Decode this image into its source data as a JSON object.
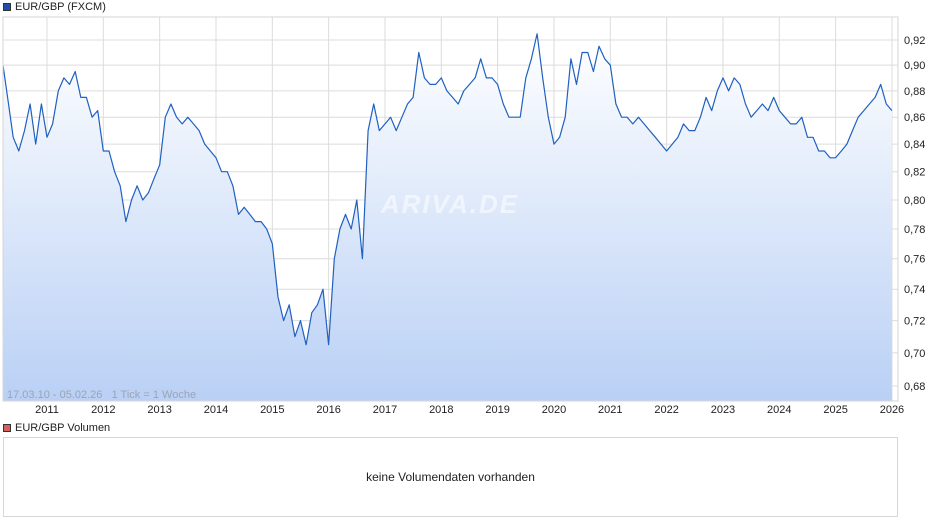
{
  "price_panel": {
    "legend_label": "EUR/GBP (FXCM)",
    "legend_color": "#1f4fa8",
    "info_text": "17.03.10 - 05.02.26   1 Tick = 1 Woche",
    "watermark": "ARIVA.DE",
    "line_color": "#2060c0",
    "fill_top_color": "#ffffff",
    "fill_bottom_color": "#b9d0f5"
  },
  "volume_panel": {
    "legend_label": "EUR/GBP Volumen",
    "legend_color": "#d66060",
    "empty_message": "keine Volumendaten vorhanden"
  },
  "chart_data": {
    "type": "area",
    "title": "EUR/GBP (FXCM)",
    "xlabel": "",
    "ylabel": "",
    "date_range": "17.03.10 - 05.02.26",
    "tick_interval": "1 Tick = 1 Woche",
    "ylim": [
      0.67,
      0.935
    ],
    "grid": true,
    "legend_position": "top-left",
    "y_ticks": [
      "0,68",
      "0,70",
      "0,72",
      "0,74",
      "0,76",
      "0,78",
      "0,80",
      "0,82",
      "0,84",
      "0,86",
      "0,88",
      "0,90",
      "0,92"
    ],
    "x_ticks": [
      "2011",
      "2012",
      "2013",
      "2014",
      "2015",
      "2016",
      "2017",
      "2018",
      "2019",
      "2020",
      "2021",
      "2022",
      "2023",
      "2024",
      "2025",
      "2026"
    ],
    "x": [
      2010.21,
      2010.3,
      2010.4,
      2010.5,
      2010.6,
      2010.7,
      2010.8,
      2010.9,
      2011.0,
      2011.1,
      2011.2,
      2011.3,
      2011.4,
      2011.5,
      2011.6,
      2011.7,
      2011.8,
      2011.9,
      2012.0,
      2012.1,
      2012.2,
      2012.3,
      2012.4,
      2012.5,
      2012.6,
      2012.7,
      2012.8,
      2012.9,
      2013.0,
      2013.1,
      2013.2,
      2013.3,
      2013.4,
      2013.5,
      2013.6,
      2013.7,
      2013.8,
      2013.9,
      2014.0,
      2014.1,
      2014.2,
      2014.3,
      2014.4,
      2014.5,
      2014.6,
      2014.7,
      2014.8,
      2014.9,
      2015.0,
      2015.1,
      2015.2,
      2015.3,
      2015.4,
      2015.5,
      2015.6,
      2015.7,
      2015.8,
      2015.9,
      2016.0,
      2016.1,
      2016.2,
      2016.3,
      2016.4,
      2016.5,
      2016.6,
      2016.7,
      2016.8,
      2016.9,
      2017.0,
      2017.1,
      2017.2,
      2017.3,
      2017.4,
      2017.5,
      2017.6,
      2017.7,
      2017.8,
      2017.9,
      2018.0,
      2018.1,
      2018.2,
      2018.3,
      2018.4,
      2018.5,
      2018.6,
      2018.7,
      2018.8,
      2018.9,
      2019.0,
      2019.1,
      2019.2,
      2019.3,
      2019.4,
      2019.5,
      2019.6,
      2019.7,
      2019.8,
      2019.9,
      2020.0,
      2020.1,
      2020.2,
      2020.3,
      2020.4,
      2020.5,
      2020.6,
      2020.7,
      2020.8,
      2020.9,
      2021.0,
      2021.1,
      2021.2,
      2021.3,
      2021.4,
      2021.5,
      2021.6,
      2021.7,
      2021.8,
      2021.9,
      2022.0,
      2022.1,
      2022.2,
      2022.3,
      2022.4,
      2022.5,
      2022.6,
      2022.7,
      2022.8,
      2022.9,
      2023.0,
      2023.1,
      2023.2,
      2023.3,
      2023.4,
      2023.5,
      2023.6,
      2023.7,
      2023.8,
      2023.9,
      2024.0,
      2024.1,
      2024.2,
      2024.3,
      2024.4,
      2024.5,
      2024.6,
      2024.7,
      2024.8,
      2024.9,
      2025.0,
      2025.1,
      2025.2,
      2025.3,
      2025.4,
      2025.5,
      2025.6,
      2025.7,
      2025.8,
      2025.9,
      2026.0,
      2026.1
    ],
    "series": [
      {
        "name": "EUR/GBP",
        "values": [
          0.9,
          0.875,
          0.845,
          0.835,
          0.85,
          0.87,
          0.84,
          0.87,
          0.845,
          0.855,
          0.88,
          0.89,
          0.885,
          0.895,
          0.875,
          0.875,
          0.86,
          0.865,
          0.835,
          0.835,
          0.82,
          0.81,
          0.785,
          0.8,
          0.81,
          0.8,
          0.805,
          0.815,
          0.825,
          0.86,
          0.87,
          0.86,
          0.855,
          0.86,
          0.855,
          0.85,
          0.84,
          0.835,
          0.83,
          0.82,
          0.82,
          0.81,
          0.79,
          0.795,
          0.79,
          0.785,
          0.785,
          0.78,
          0.77,
          0.735,
          0.72,
          0.73,
          0.71,
          0.72,
          0.705,
          0.725,
          0.73,
          0.74,
          0.705,
          0.76,
          0.78,
          0.79,
          0.78,
          0.8,
          0.76,
          0.85,
          0.87,
          0.85,
          0.855,
          0.86,
          0.85,
          0.86,
          0.87,
          0.875,
          0.91,
          0.89,
          0.885,
          0.885,
          0.89,
          0.88,
          0.875,
          0.87,
          0.88,
          0.885,
          0.89,
          0.905,
          0.89,
          0.89,
          0.885,
          0.87,
          0.86,
          0.86,
          0.86,
          0.89,
          0.905,
          0.925,
          0.89,
          0.86,
          0.84,
          0.845,
          0.86,
          0.905,
          0.885,
          0.91,
          0.91,
          0.895,
          0.915,
          0.905,
          0.9,
          0.87,
          0.86,
          0.86,
          0.855,
          0.86,
          0.855,
          0.85,
          0.845,
          0.84,
          0.835,
          0.84,
          0.845,
          0.855,
          0.85,
          0.85,
          0.86,
          0.875,
          0.865,
          0.88,
          0.89,
          0.88,
          0.89,
          0.885,
          0.87,
          0.86,
          0.865,
          0.87,
          0.865,
          0.875,
          0.865,
          0.86,
          0.855,
          0.855,
          0.86,
          0.845,
          0.845,
          0.835,
          0.835,
          0.83,
          0.83,
          0.835,
          0.84,
          0.85,
          0.86,
          0.865,
          0.87,
          0.875,
          0.885,
          0.87,
          0.865
        ]
      }
    ]
  }
}
